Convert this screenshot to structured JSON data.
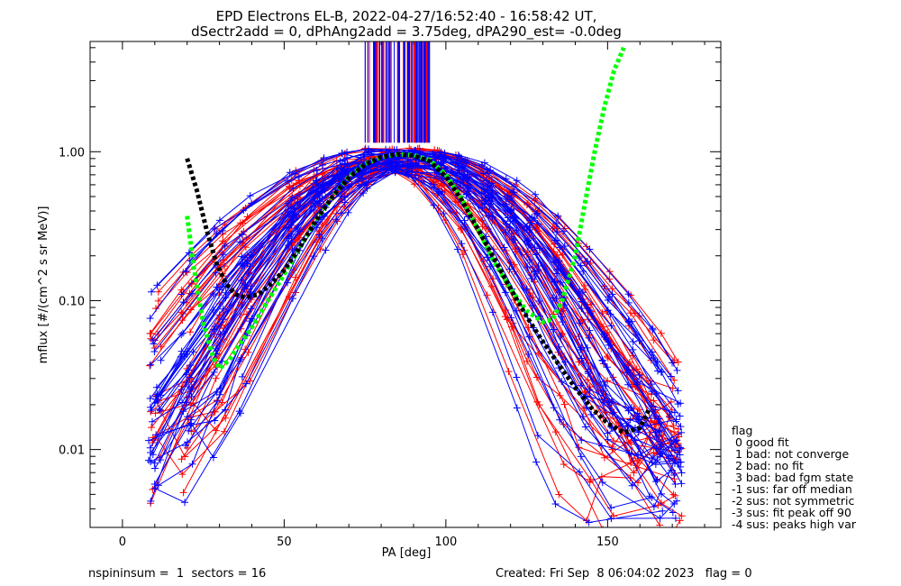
{
  "chart_data": {
    "type": "line",
    "title_lines": [
      "EPD Electrons EL-B, 2022-04-27/16:52:40 - 16:58:42 UT,",
      "dSectr2add = 0, dPhAng2add = 3.75deg, dPA290_est=  -0.0deg"
    ],
    "xlabel": "PA [deg]",
    "ylabel": "mflux [#/(cm^2 s sr MeV)]",
    "xlim": [
      -10,
      185
    ],
    "ylim": [
      0.003,
      5.5
    ],
    "yscale": "log",
    "x_ticks": [
      0,
      50,
      100,
      150
    ],
    "x_tick_labels": [
      "0",
      "50",
      "100",
      "150"
    ],
    "y_ticks": [
      0.01,
      0.1,
      1.0
    ],
    "y_tick_labels": [
      "0.01",
      "0.10",
      "1.00"
    ],
    "series": [
      {
        "color": "#ff0000",
        "count": 40
      },
      {
        "color": "#0000ff",
        "count": 44
      }
    ],
    "fit_curves": [
      {
        "color": "#00ff00",
        "style": "dotted",
        "x": [
          20,
          22,
          25,
          28,
          30,
          33,
          36,
          40,
          45,
          50,
          55,
          60,
          65,
          70,
          75,
          80,
          85,
          90,
          95,
          100,
          105,
          110,
          115,
          120,
          125,
          130,
          133,
          136,
          140,
          143,
          146,
          149,
          152,
          155
        ],
        "y": [
          0.37,
          0.17,
          0.07,
          0.042,
          0.035,
          0.04,
          0.05,
          0.066,
          0.1,
          0.15,
          0.23,
          0.35,
          0.5,
          0.68,
          0.83,
          0.92,
          0.96,
          0.95,
          0.88,
          0.7,
          0.48,
          0.3,
          0.18,
          0.12,
          0.085,
          0.072,
          0.075,
          0.1,
          0.2,
          0.45,
          1.0,
          2.0,
          3.5,
          5.0
        ]
      },
      {
        "color": "#000000",
        "style": "dotted",
        "x": [
          20,
          23,
          26,
          29,
          32,
          35,
          38,
          42,
          46,
          50,
          55,
          60,
          65,
          70,
          75,
          80,
          85,
          90,
          95,
          100,
          105,
          110,
          115,
          120,
          125,
          130,
          135,
          140,
          145,
          150,
          155,
          160,
          163
        ],
        "y": [
          0.9,
          0.55,
          0.3,
          0.18,
          0.13,
          0.11,
          0.105,
          0.11,
          0.13,
          0.16,
          0.23,
          0.35,
          0.5,
          0.67,
          0.82,
          0.92,
          0.96,
          0.94,
          0.86,
          0.68,
          0.47,
          0.3,
          0.19,
          0.12,
          0.078,
          0.053,
          0.037,
          0.026,
          0.019,
          0.015,
          0.013,
          0.014,
          0.019
        ]
      }
    ],
    "legend": {
      "title": "flag",
      "entries": [
        " 0 good fit",
        " 1 bad: not converge",
        " 2 bad: no fit",
        " 3 bad: bad fgm state",
        "-1 sus: far off median",
        "-2 sus: not symmetric",
        "-3 sus: fit peak off 90",
        "-4 sus: peaks high var"
      ]
    },
    "grid": false
  },
  "footer": {
    "left": "nspininsum =  1  sectors = 16",
    "right": "Created: Fri Sep  8 06:04:02 2023   flag = 0"
  }
}
